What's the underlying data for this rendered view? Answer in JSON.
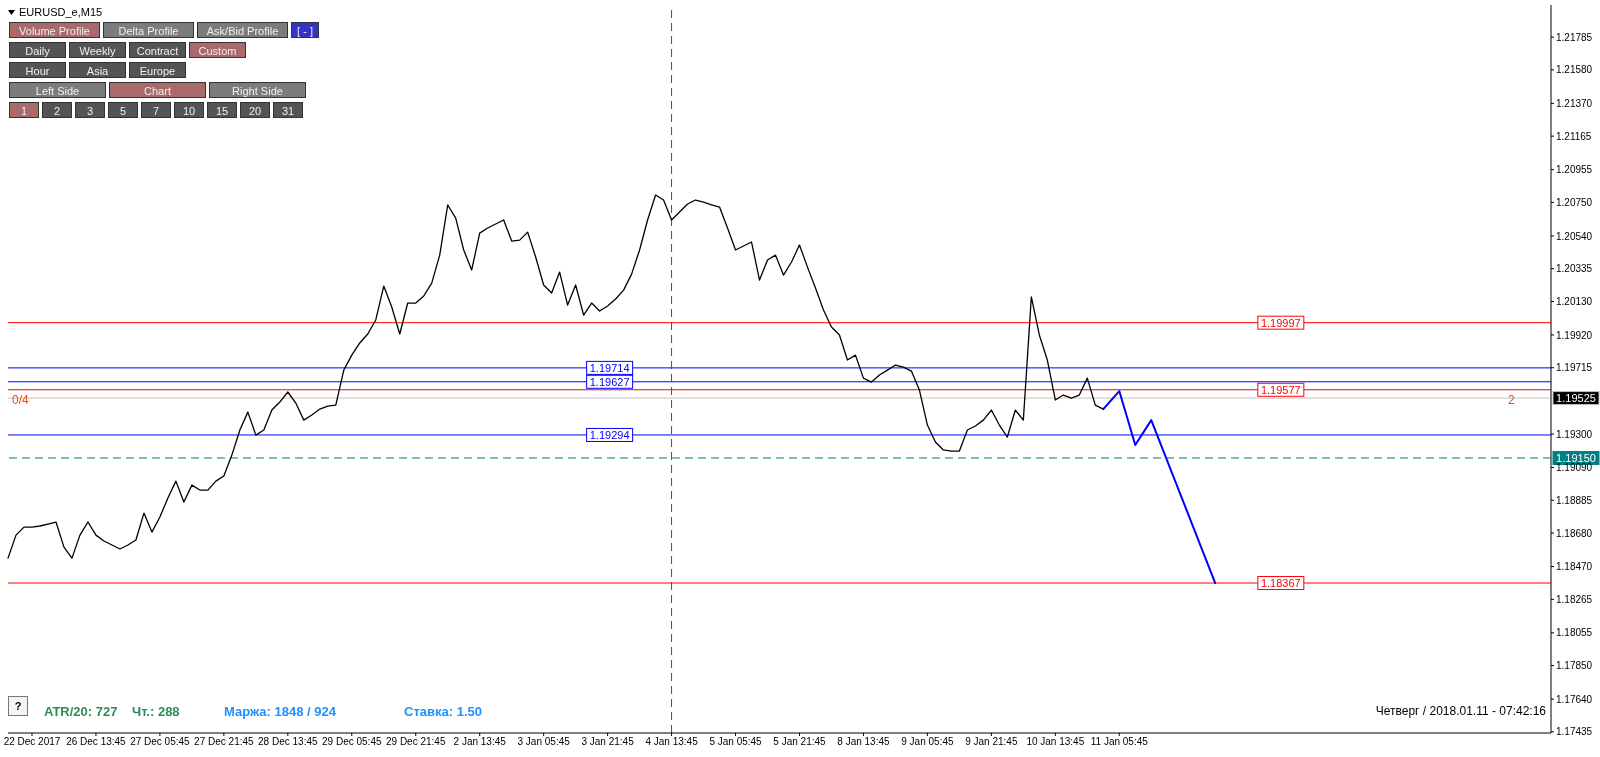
{
  "chart_data": {
    "type": "line",
    "title": "EURUSD_e,M15",
    "marker": "none",
    "line_style": "solid",
    "categories": [
      null,
      null,
      null,
      "22 Dec 2017",
      null,
      null,
      null,
      null,
      null,
      null,
      null,
      "26 Dec 13:45",
      null,
      null,
      null,
      null,
      null,
      null,
      null,
      "27 Dec 05:45",
      null,
      null,
      null,
      null,
      null,
      null,
      null,
      "27 Dec 21:45",
      null,
      null,
      null,
      null,
      null,
      null,
      null,
      "28 Dec 13:45",
      null,
      null,
      null,
      null,
      null,
      null,
      null,
      "29 Dec 05:45",
      null,
      null,
      null,
      null,
      null,
      null,
      null,
      "29 Dec 21:45",
      null,
      null,
      null,
      null,
      null,
      null,
      null,
      "2 Jan 13:45",
      null,
      null,
      null,
      null,
      null,
      null,
      null,
      "3 Jan 05:45",
      null,
      null,
      null,
      null,
      null,
      null,
      null,
      "3 Jan 21:45",
      null,
      null,
      null,
      null,
      null,
      null,
      null,
      "4 Jan 13:45",
      null,
      null,
      null,
      null,
      null,
      null,
      null,
      "5 Jan 05:45",
      null,
      null,
      null,
      null,
      null,
      null,
      null,
      "5 Jan 21:45",
      null,
      null,
      null,
      null,
      null,
      null,
      null,
      "8 Jan 13:45",
      null,
      null,
      null,
      null,
      null,
      null,
      null,
      "9 Jan 05:45",
      null,
      null,
      null,
      null,
      null,
      null,
      null,
      "9 Jan 21:45",
      null,
      null,
      null,
      null,
      null,
      null,
      null,
      "10 Jan 13:45",
      null,
      null,
      null,
      null,
      null,
      null,
      null,
      "11 Jan 05:45",
      null,
      null,
      null,
      null,
      null,
      null,
      null,
      null,
      null,
      null,
      null,
      null,
      null,
      null,
      null,
      null,
      null,
      null,
      null,
      null,
      null,
      null,
      null,
      null,
      null,
      null,
      null,
      null,
      null,
      null,
      null,
      null,
      null,
      null,
      null,
      null,
      null,
      null,
      null,
      null,
      null,
      null,
      null,
      null,
      null,
      null,
      null,
      null,
      null,
      null,
      null,
      null,
      null,
      null
    ],
    "series": [
      {
        "color": "#000000",
        "values": [
          1.18523,
          1.18667,
          1.18717,
          1.18717,
          1.18724,
          1.18736,
          1.18749,
          1.18592,
          1.18523,
          1.18667,
          1.18749,
          1.18667,
          1.1863,
          1.18605,
          1.1858,
          1.18605,
          1.18636,
          1.18805,
          1.18686,
          1.1878,
          1.18899,
          1.19005,
          1.18874,
          1.1898,
          1.18949,
          1.18949,
          1.19005,
          1.19037,
          1.19168,
          1.19325,
          1.19437,
          1.19293,
          1.19325,
          1.1945,
          1.195,
          1.19563,
          1.19494,
          1.19387,
          1.19419,
          1.19456,
          1.19475,
          1.19481,
          1.197,
          1.19794,
          1.1987,
          1.19926,
          1.20014,
          1.20226,
          1.20095,
          1.19926,
          1.2012,
          1.2012,
          1.20164,
          1.20245,
          1.2042,
          1.20734,
          1.20652,
          1.20452,
          1.20327,
          1.20558,
          1.2059,
          1.20615,
          1.2064,
          1.20508,
          1.20514,
          1.20564,
          1.20408,
          1.20233,
          1.20183,
          1.20314,
          1.20107,
          1.20233,
          1.20045,
          1.2012,
          1.2007,
          1.20101,
          1.20145,
          1.20201,
          1.20301,
          1.20452,
          1.2064,
          1.20796,
          1.20765,
          1.2064,
          1.2069,
          1.2074,
          1.20765,
          1.20752,
          1.20734,
          1.20721,
          1.2059,
          1.20452,
          1.20477,
          1.20502,
          1.20264,
          1.20389,
          1.2042,
          1.20295,
          1.20377,
          1.20483,
          1.20345,
          1.20214,
          1.20076,
          1.1997,
          1.1992,
          1.19763,
          1.19794,
          1.1965,
          1.19625,
          1.19669,
          1.197,
          1.19732,
          1.19719,
          1.19694,
          1.19575,
          1.19356,
          1.1925,
          1.192,
          1.19193,
          1.19193,
          1.19325,
          1.1935,
          1.19387,
          1.1945,
          1.19356,
          1.19281,
          1.1945,
          1.19387,
          1.20158,
          1.1992,
          1.19763,
          1.19513,
          1.19544,
          1.19525,
          1.19544,
          1.1965,
          1.19481,
          1.19456,
          null,
          null,
          null,
          null,
          null,
          null,
          null,
          null,
          null,
          null,
          null,
          null,
          null,
          null,
          null,
          null,
          null,
          null,
          null,
          null,
          null,
          null,
          null,
          null,
          null,
          null,
          null,
          null,
          null,
          null,
          null,
          null,
          null,
          null,
          null,
          null,
          null,
          null,
          null,
          null,
          null,
          null,
          null,
          null,
          null,
          null,
          null,
          null,
          null,
          null,
          null,
          null,
          null,
          null,
          null,
          null
        ]
      },
      {
        "color": "#0000ff",
        "values": [
          null,
          null,
          null,
          null,
          null,
          null,
          null,
          null,
          null,
          null,
          null,
          null,
          null,
          null,
          null,
          null,
          null,
          null,
          null,
          null,
          null,
          null,
          null,
          null,
          null,
          null,
          null,
          null,
          null,
          null,
          null,
          null,
          null,
          null,
          null,
          null,
          null,
          null,
          null,
          null,
          null,
          null,
          null,
          null,
          null,
          null,
          null,
          null,
          null,
          null,
          null,
          null,
          null,
          null,
          null,
          null,
          null,
          null,
          null,
          null,
          null,
          null,
          null,
          null,
          null,
          null,
          null,
          null,
          null,
          null,
          null,
          null,
          null,
          null,
          null,
          null,
          null,
          null,
          null,
          null,
          null,
          null,
          null,
          null,
          null,
          null,
          null,
          null,
          null,
          null,
          null,
          null,
          null,
          null,
          null,
          null,
          null,
          null,
          null,
          null,
          null,
          null,
          null,
          null,
          null,
          null,
          null,
          null,
          null,
          null,
          null,
          null,
          null,
          null,
          null,
          null,
          null,
          null,
          null,
          null,
          null,
          null,
          null,
          null,
          null,
          null,
          null,
          null,
          null,
          null,
          null,
          null,
          null,
          null,
          null,
          null,
          null,
          1.19456,
          null,
          1.19569,
          null,
          1.19231,
          null,
          1.19387,
          null,
          null,
          null,
          null,
          null,
          null,
          null,
          1.18367,
          null,
          null,
          null,
          null,
          null,
          null,
          null,
          null,
          null,
          null,
          null,
          null,
          null,
          null,
          null,
          null,
          null,
          null,
          null,
          null,
          null,
          null,
          null,
          null,
          null,
          null,
          null,
          null,
          null,
          null,
          null,
          null,
          null,
          null,
          null,
          null,
          null,
          null,
          null,
          null,
          null,
          null
        ]
      }
    ],
    "ylim": [
      1.17428,
      1.21986
    ],
    "yticks": [
      1.21785,
      {
        "value": 1.2158,
        "label": "1.21580"
      },
      {
        "value": 1.2137,
        "label": "1.21370"
      },
      1.21165,
      1.20955,
      {
        "value": 1.2075,
        "label": "1.20750"
      },
      {
        "value": 1.2054,
        "label": "1.20540"
      },
      1.20335,
      {
        "value": 1.2013,
        "label": "1.20130"
      },
      {
        "value": 1.1992,
        "label": "1.19920"
      },
      1.19715,
      {
        "value": 1.193,
        "label": "1.19300"
      },
      {
        "value": 1.1909,
        "label": "1.19090"
      },
      1.18885,
      {
        "value": 1.1868,
        "label": "1.18680"
      },
      {
        "value": 1.1847,
        "label": "1.18470"
      },
      1.18265,
      1.18055,
      {
        "value": 1.1785,
        "label": "1.17850"
      },
      {
        "value": 1.1764,
        "label": "1.17640"
      },
      1.17435
    ],
    "ref_lines": [
      {
        "axis": "y",
        "value": 1.19997,
        "label": "1.19997",
        "color": "#ff0000",
        "line_style": "solid"
      },
      {
        "axis": "y",
        "value": 1.19577,
        "label": "1.19577",
        "color": "#ff0000",
        "line_style": "solid"
      },
      {
        "axis": "y",
        "value": 1.18367,
        "label": "1.18367",
        "color": "#ff0000",
        "line_style": "solid"
      },
      {
        "axis": "y",
        "value": 1.19714,
        "label": "1.19714",
        "color": "#0000ff",
        "line_style": "solid"
      },
      {
        "axis": "y",
        "value": 1.19627,
        "label": "1.19627",
        "color": "#0000ff",
        "line_style": "solid"
      },
      {
        "axis": "y",
        "value": 1.19294,
        "label": "1.19294",
        "color": "#0000ff",
        "line_style": "solid"
      },
      {
        "axis": "y",
        "value": 1.19525,
        "label": "1.19525",
        "color": "#c0c0c0",
        "line_style": "solid"
      },
      {
        "axis": "y",
        "value": 1.1915,
        "label": "1.19150",
        "color": "#008080",
        "line_style": "dashed"
      },
      {
        "axis": "x",
        "value": "4 Jan 13:45",
        "label": null,
        "color": "#ff0000",
        "line_style": "dashed"
      }
    ],
    "annotations": [
      "Volume Profile",
      "Delta Profile",
      "Ask/Bid Profile",
      "[ - ]",
      "Daily",
      "Weekly",
      "Contract",
      "Custom",
      "Hour",
      "Asia",
      "Europe",
      "Left Side",
      "Chart",
      "Right Side",
      "1",
      "2",
      "3",
      "5",
      "7",
      "10",
      "15",
      "20",
      "31",
      "?",
      "ATR/20: 727",
      "Чт.: 288",
      "Маржа: 1848 / 924",
      "Ставка: 1.50",
      "Четверг / 2018.01.11 - 07:42:16",
      "0/4",
      "2"
    ]
  }
}
